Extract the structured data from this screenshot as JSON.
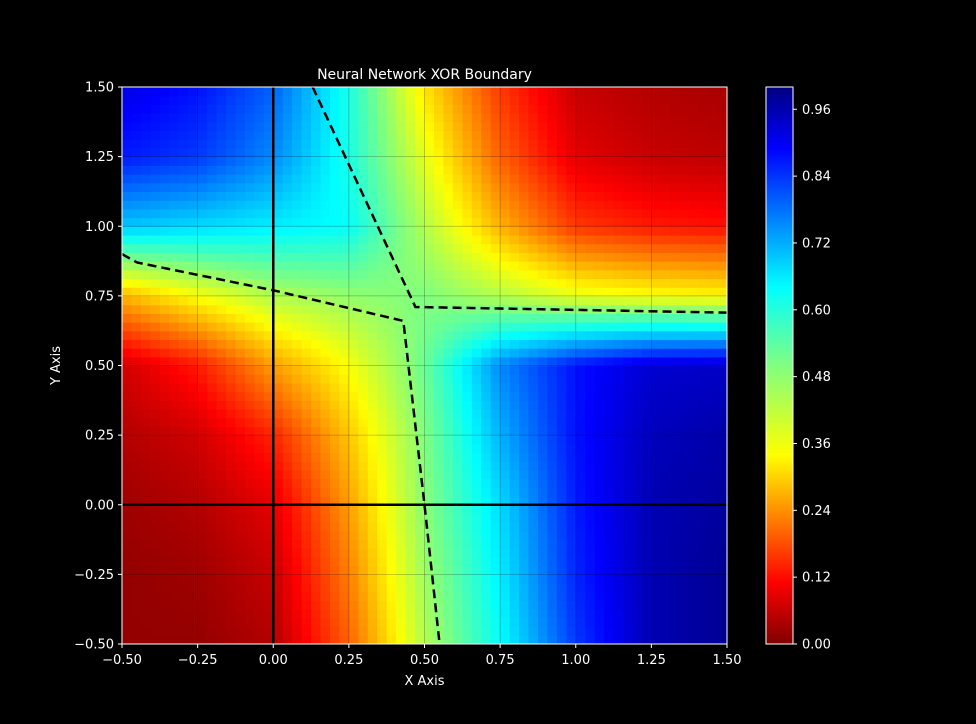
{
  "chart_data": {
    "type": "heatmap",
    "title": "Neural Network XOR Boundary",
    "xlabel": "X Axis",
    "ylabel": "Y Axis",
    "xlim": [
      -0.5,
      1.5
    ],
    "ylim": [
      -0.5,
      1.5
    ],
    "x_ticks": [
      "−0.50",
      "−0.25",
      "0.00",
      "0.25",
      "0.50",
      "0.75",
      "1.00",
      "1.25",
      "1.50"
    ],
    "y_ticks": [
      "−0.50",
      "−0.25",
      "0.00",
      "0.25",
      "0.50",
      "0.75",
      "1.00",
      "1.25",
      "1.50"
    ],
    "x_tick_values": [
      -0.5,
      -0.25,
      0,
      0.25,
      0.5,
      0.75,
      1.0,
      1.25,
      1.5
    ],
    "y_tick_values": [
      -0.5,
      -0.25,
      0,
      0.25,
      0.5,
      0.75,
      1.0,
      1.25,
      1.5
    ],
    "grid": true,
    "colormap": "jet",
    "colorbar": {
      "range": [
        0,
        1
      ],
      "ticks": [
        "0.00",
        "0.12",
        "0.24",
        "0.36",
        "0.48",
        "0.60",
        "0.72",
        "0.84",
        "0.96"
      ],
      "tick_values": [
        0,
        0.12,
        0.24,
        0.36,
        0.48,
        0.6,
        0.72,
        0.84,
        0.96
      ]
    },
    "grid_x": [
      -0.5,
      -0.25,
      0,
      0.25,
      0.5,
      0.75,
      1.0,
      1.25,
      1.5
    ],
    "grid_y": [
      -0.5,
      -0.25,
      0,
      0.25,
      0.5,
      0.75,
      1.0,
      1.25,
      1.5
    ],
    "z": [
      [
        0.02,
        0.02,
        0.05,
        0.22,
        0.45,
        0.62,
        0.82,
        0.95,
        0.98
      ],
      [
        0.02,
        0.03,
        0.07,
        0.25,
        0.47,
        0.64,
        0.84,
        0.95,
        0.98
      ],
      [
        0.03,
        0.05,
        0.1,
        0.28,
        0.49,
        0.66,
        0.85,
        0.95,
        0.97
      ],
      [
        0.05,
        0.08,
        0.16,
        0.32,
        0.5,
        0.7,
        0.86,
        0.94,
        0.96
      ],
      [
        0.08,
        0.15,
        0.28,
        0.38,
        0.52,
        0.74,
        0.86,
        0.92,
        0.93
      ],
      [
        0.3,
        0.38,
        0.45,
        0.48,
        0.5,
        0.45,
        0.4,
        0.38,
        0.37
      ],
      [
        0.68,
        0.66,
        0.64,
        0.62,
        0.45,
        0.3,
        0.18,
        0.15,
        0.14
      ],
      [
        0.85,
        0.82,
        0.74,
        0.6,
        0.4,
        0.22,
        0.1,
        0.07,
        0.06
      ],
      [
        0.9,
        0.86,
        0.78,
        0.6,
        0.35,
        0.18,
        0.07,
        0.05,
        0.04
      ]
    ],
    "decision_boundary": [
      [
        [
          -0.5,
          0.9
        ],
        [
          -0.45,
          0.87
        ],
        [
          0.0,
          0.77
        ],
        [
          0.43,
          0.66
        ],
        [
          0.5,
          0.0
        ],
        [
          0.55,
          -0.5
        ]
      ],
      [
        [
          0.13,
          1.5
        ],
        [
          0.47,
          0.71
        ],
        [
          1.5,
          0.69
        ]
      ]
    ],
    "reference_lines": {
      "x": 0,
      "y": 0
    },
    "colors": {
      "background": "#000000",
      "foreground": "#ffffff",
      "boundary": "#000000"
    }
  }
}
